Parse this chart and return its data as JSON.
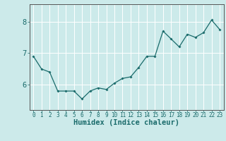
{
  "x": [
    0,
    1,
    2,
    3,
    4,
    5,
    6,
    7,
    8,
    9,
    10,
    11,
    12,
    13,
    14,
    15,
    16,
    17,
    18,
    19,
    20,
    21,
    22,
    23
  ],
  "y": [
    6.9,
    6.5,
    6.4,
    5.8,
    5.8,
    5.8,
    5.55,
    5.8,
    5.9,
    5.85,
    6.05,
    6.2,
    6.25,
    6.55,
    6.9,
    6.9,
    7.7,
    7.45,
    7.2,
    7.6,
    7.5,
    7.65,
    8.05,
    7.75
  ],
  "line_color": "#1a6b6b",
  "marker": "D",
  "marker_size": 2.0,
  "bg_color": "#cceaea",
  "grid_color": "#ffffff",
  "axis_color": "#555555",
  "xlabel": "Humidex (Indice chaleur)",
  "ylim": [
    5.2,
    8.55
  ],
  "xlim": [
    -0.5,
    23.5
  ],
  "yticks": [
    6,
    7,
    8
  ],
  "xticks": [
    0,
    1,
    2,
    3,
    4,
    5,
    6,
    7,
    8,
    9,
    10,
    11,
    12,
    13,
    14,
    15,
    16,
    17,
    18,
    19,
    20,
    21,
    22,
    23
  ],
  "title_color": "#1a6b6b",
  "xlabel_fontsize": 7.5,
  "tick_fontsize": 5.5,
  "ytick_fontsize": 7.5,
  "linewidth": 0.9
}
